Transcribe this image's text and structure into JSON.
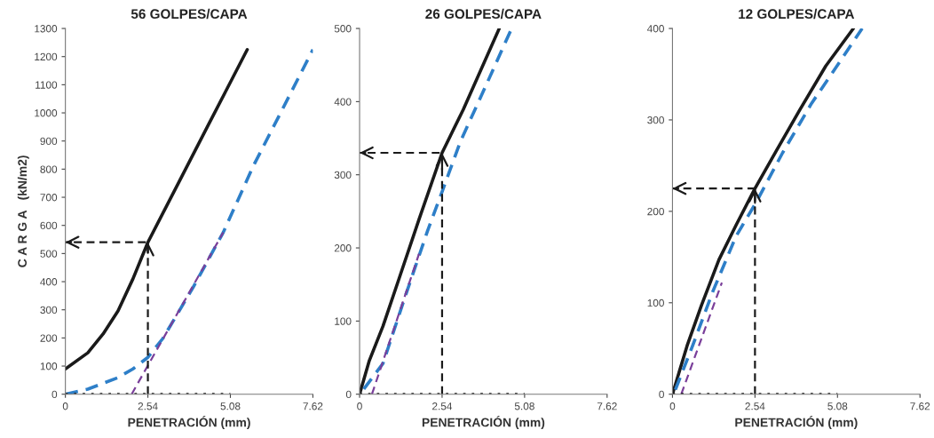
{
  "chart_data": [
    {
      "type": "line",
      "title": "56 GOLPES/CAPA",
      "xlabel": "PENETRACIÓN (mm)",
      "ylabel": "C A R G A   (kN/m2)",
      "xlim": [
        0,
        7.62
      ],
      "xticks": [
        0,
        2.54,
        5.08,
        7.62
      ],
      "ylim": [
        0,
        1300
      ],
      "yticks": [
        0,
        100,
        200,
        300,
        400,
        500,
        600,
        700,
        800,
        900,
        1000,
        1100,
        1200,
        1300
      ],
      "grid": false,
      "legend": false,
      "series": [
        {
          "color": "#1a1a1a",
          "line_style": "solid",
          "x": [
            0,
            0.69,
            1.16,
            1.62,
            2.08,
            2.54,
            3.5,
            4.4,
            5.0,
            5.6
          ],
          "values": [
            90,
            147,
            214,
            296,
            410,
            540,
            755,
            957,
            1091,
            1225
          ]
        },
        {
          "color": "#2e7fc8",
          "line_style": "dashed",
          "x": [
            0,
            0.69,
            1.62,
            2.08,
            2.54,
            3.0,
            3.93,
            4.86,
            5.79,
            6.71,
            7.62
          ],
          "values": [
            0,
            18,
            59,
            90,
            131,
            198,
            379,
            575,
            812,
            1019,
            1225
          ]
        },
        {
          "color": "#7a3f9a",
          "line_style": "dashed",
          "x": [
            2.04,
            4.86
          ],
          "values": [
            0,
            575
          ]
        },
        {
          "color": "#1a1a1a",
          "line_style": "dotted",
          "x": [
            0,
            5.08
          ],
          "values": [
            0,
            0
          ]
        },
        {
          "color": "#1a1a1a",
          "line_style": "dashed",
          "x": [
            2.54,
            2.54,
            0
          ],
          "values": [
            0,
            540,
            540
          ]
        }
      ]
    },
    {
      "type": "line",
      "title": "26 GOLPES/CAPA",
      "xlabel": "PENETRACIÓN (mm)",
      "xlim": [
        0,
        7.62
      ],
      "xticks": [
        0,
        2.54,
        5.08,
        7.62
      ],
      "ylim": [
        0,
        500
      ],
      "yticks": [
        0,
        100,
        200,
        300,
        400,
        500
      ],
      "grid": false,
      "legend": false,
      "series": [
        {
          "color": "#1a1a1a",
          "line_style": "solid",
          "x": [
            0,
            0.3,
            0.72,
            1.23,
            1.83,
            2.54,
            3.19,
            4.3
          ],
          "values": [
            0,
            46,
            93,
            160,
            239,
            330,
            389,
            500
          ]
        },
        {
          "color": "#2e7fc8",
          "line_style": "dashed",
          "x": [
            0.13,
            0.72,
            1.4,
            2.09,
            2.55,
            3.1,
            3.87,
            4.68
          ],
          "values": [
            7,
            42,
            133,
            223,
            278,
            345,
            420,
            500
          ]
        },
        {
          "color": "#7a3f9a",
          "line_style": "dashed",
          "x": [
            0.38,
            1.83
          ],
          "values": [
            0,
            192
          ]
        },
        {
          "color": "#1a1a1a",
          "line_style": "dotted",
          "x": [
            0,
            5.08
          ],
          "values": [
            0,
            0
          ]
        },
        {
          "color": "#1a1a1a",
          "line_style": "dashed",
          "x": [
            2.54,
            2.54,
            0
          ],
          "values": [
            0,
            330,
            330
          ]
        }
      ]
    },
    {
      "type": "line",
      "title": "12 GOLPES/CAPA",
      "xlabel": "PENETRACIÓN (mm)",
      "xlim": [
        0,
        7.62
      ],
      "xticks": [
        0,
        2.54,
        5.08,
        7.62
      ],
      "ylim": [
        0,
        400
      ],
      "yticks": [
        0,
        100,
        200,
        300,
        400
      ],
      "grid": false,
      "legend": false,
      "series": [
        {
          "color": "#1a1a1a",
          "line_style": "solid",
          "x": [
            0,
            0.45,
            0.89,
            1.43,
            1.96,
            2.54,
            3.21,
            3.92,
            4.72,
            5.57
          ],
          "values": [
            0,
            53,
            97,
            147,
            185,
            225,
            267,
            311,
            359,
            400
          ]
        },
        {
          "color": "#2e7fc8",
          "line_style": "dashed",
          "x": [
            0.09,
            0.62,
            1.25,
            1.96,
            2.58,
            3.39,
            4.28,
            4.99,
            5.84
          ],
          "values": [
            5,
            53,
            113,
            173,
            210,
            264,
            318,
            355,
            400
          ]
        },
        {
          "color": "#7a3f9a",
          "line_style": "dashed",
          "x": [
            0.27,
            1.52
          ],
          "values": [
            0,
            122
          ]
        },
        {
          "color": "#1a1a1a",
          "line_style": "dotted",
          "x": [
            0,
            5.08
          ],
          "values": [
            0,
            0
          ]
        },
        {
          "color": "#1a1a1a",
          "line_style": "dashed",
          "x": [
            2.54,
            2.54,
            0
          ],
          "values": [
            0,
            225,
            225
          ]
        }
      ]
    }
  ]
}
